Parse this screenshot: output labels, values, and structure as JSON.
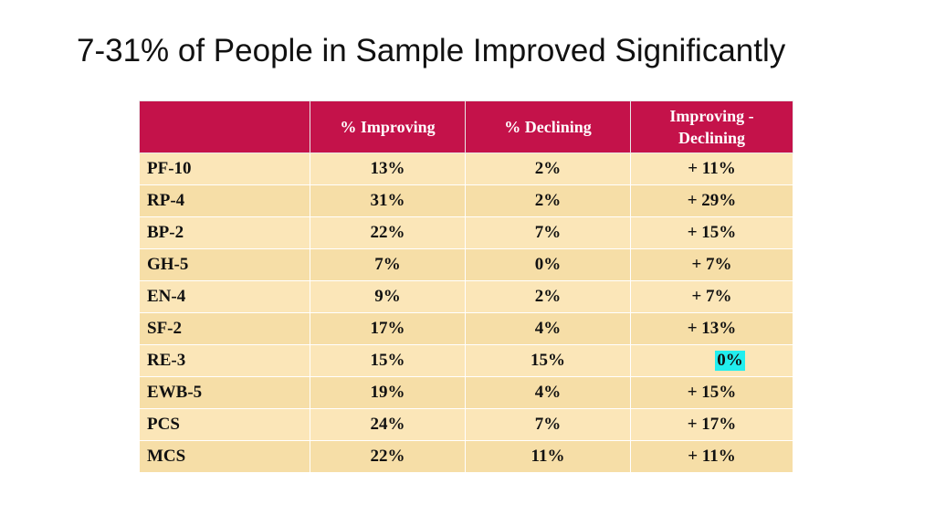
{
  "slide": {
    "title": "7-31% of People in Sample Improved Significantly"
  },
  "table": {
    "headers": [
      "",
      "% Improving",
      "% Declining",
      "Improving - Declining"
    ],
    "rows": [
      {
        "label": "PF-10",
        "improving": "13%",
        "declining": "2%",
        "difference": "+ 11%"
      },
      {
        "label": "RP-4",
        "improving": "31%",
        "declining": "2%",
        "difference": "+ 29%"
      },
      {
        "label": "BP-2",
        "improving": "22%",
        "declining": "7%",
        "difference": "+ 15%"
      },
      {
        "label": "GH-5",
        "improving": "7%",
        "declining": "0%",
        "difference": "+  7%"
      },
      {
        "label": "EN-4",
        "improving": "9%",
        "declining": "2%",
        "difference": "+  7%"
      },
      {
        "label": "SF-2",
        "improving": "17%",
        "declining": "4%",
        "difference": "+ 13%"
      },
      {
        "label": "RE-3",
        "improving": "15%",
        "declining": "15%",
        "difference": "0%",
        "highlight": true
      },
      {
        "label": "EWB-5",
        "improving": "19%",
        "declining": "4%",
        "difference": "+ 15%"
      },
      {
        "label": "PCS",
        "improving": "24%",
        "declining": "7%",
        "difference": "+ 17%"
      },
      {
        "label": "MCS",
        "improving": "22%",
        "declining": "11%",
        "difference": "+ 11%"
      }
    ]
  },
  "colors": {
    "header_bg": "#c4124a",
    "row_light": "#fbe6b8",
    "row_dark": "#f6dea7",
    "highlight": "#22eeee"
  }
}
